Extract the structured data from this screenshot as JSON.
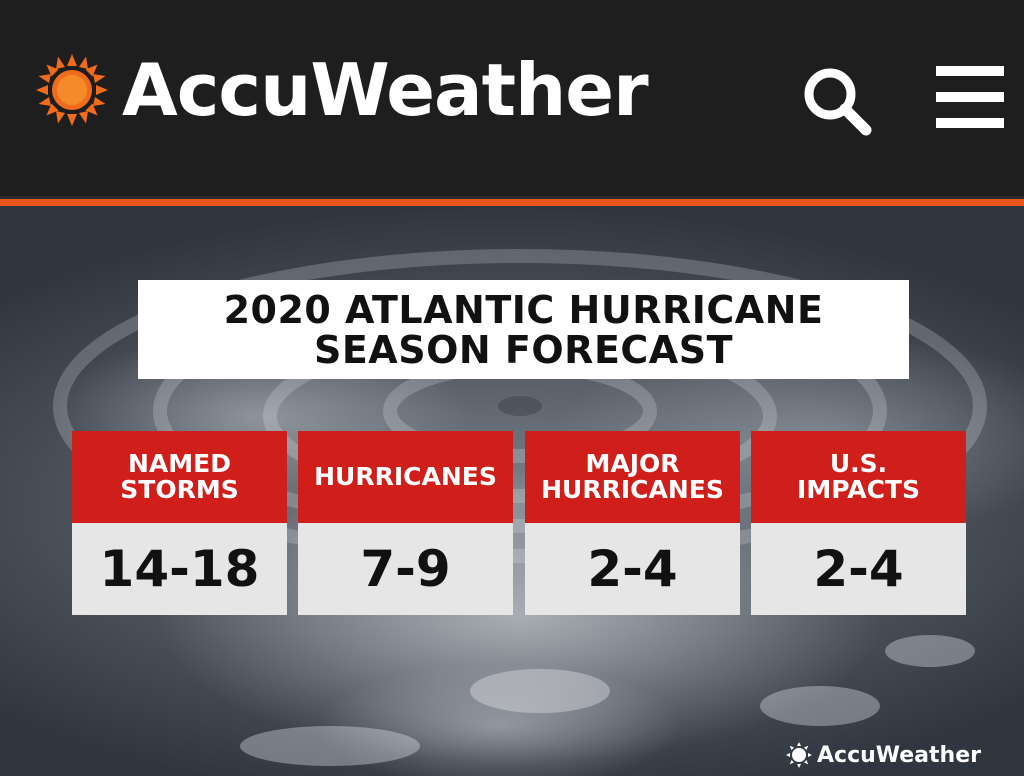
{
  "header": {
    "brand": "AccuWeather",
    "icons": {
      "logo": "sun-logo-icon",
      "search": "search-icon",
      "menu": "hamburger-menu-icon"
    }
  },
  "colors": {
    "brand_orange": "#e8561c",
    "card_red": "#d01f1b",
    "value_bg": "#e6e6e6",
    "header_bg": "#1e1e1e"
  },
  "forecast": {
    "title_line1": "2020 ATLANTIC HURRICANE",
    "title_line2": "SEASON FORECAST",
    "cards": [
      {
        "label_line1": "NAMED",
        "label_line2": "STORMS",
        "value": "14-18"
      },
      {
        "label_line1": "HURRICANES",
        "label_line2": "",
        "value": "7-9"
      },
      {
        "label_line1": "MAJOR",
        "label_line2": "HURRICANES",
        "value": "2-4"
      },
      {
        "label_line1": "U.S.",
        "label_line2": "IMPACTS",
        "value": "2-4"
      }
    ]
  },
  "watermark": {
    "text": "AccuWeather"
  }
}
